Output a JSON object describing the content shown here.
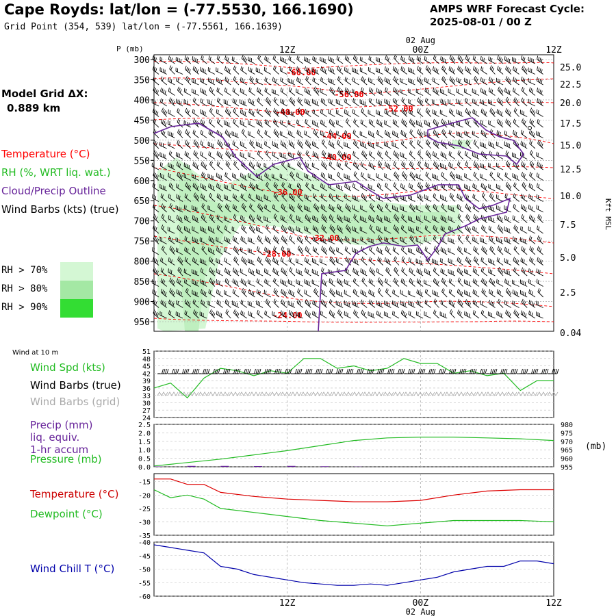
{
  "header": {
    "title": "Cape Royds:  lat/lon = (-77.5530, 166.1690)",
    "subtitle": "Grid Point (354, 539) lat/lon = (-77.5561, 166.1639)",
    "forecast_line1": "AMPS WRF Forecast Cycle:",
    "forecast_line2": "2025-08-01 / 00  Z"
  },
  "model_grid": {
    "label": "Model Grid ΔX:",
    "value": "0.889 km"
  },
  "legend": {
    "temperature": "Temperature (°C)",
    "rh": "RH (%, WRT liq. wat.)",
    "cloud": "Cloud/Precip Outline",
    "wind": "Wind Barbs (kts) (true)",
    "rh70": "RH > 70%",
    "rh80": "RH > 80%",
    "rh90": "RH > 90%"
  },
  "colors": {
    "temperature": "#ff0000",
    "rh": "#22bb22",
    "cloud": "#662299",
    "wind": "#000000",
    "rh70": "#d4f7d4",
    "rh80": "#a4e8a4",
    "rh90": "#33dd33",
    "wind_chill": "#0000aa",
    "grid_barbs": "#aaaaaa"
  },
  "time_axis": {
    "top_date": "02 Aug",
    "bottom_date": "02 Aug",
    "ticks": [
      "12Z",
      "00Z",
      "12Z"
    ]
  },
  "chart_data": [
    {
      "type": "line",
      "panel": "upper-air time-height cross section",
      "y_axis_label": "P (mb)",
      "y_ticks": [
        300,
        350,
        400,
        450,
        500,
        550,
        600,
        650,
        700,
        750,
        800,
        850,
        900,
        950
      ],
      "right_axis_label": "Kft MSL",
      "right_ticks": [
        "25.0",
        "22.5",
        "20.0",
        "17.5",
        "15.0",
        "12.5",
        "10.0",
        "7.5",
        "5.0",
        "2.5",
        "0.04"
      ],
      "isotherm_labels": [
        "-60.00",
        "-56.00",
        "-52.00",
        "-48.00",
        "-44.00",
        "-40.00",
        "-36.00",
        "-32.00",
        "-28.00",
        "-24.00"
      ]
    },
    {
      "type": "line",
      "panel": "wind at 10 m",
      "label": "Wind at 10 m",
      "series": [
        {
          "name": "Wind Spd (kts)",
          "x": [
            0,
            1.5,
            3,
            4.5,
            6,
            7.5,
            9,
            10.5,
            12,
            13.5,
            15,
            16.5,
            18,
            19.5,
            21,
            22.5,
            24,
            25.5,
            27,
            28.5,
            30,
            31.5,
            33,
            34.5,
            36
          ],
          "values": [
            36,
            38,
            32,
            40,
            44,
            43,
            41,
            43,
            42,
            48,
            48,
            44,
            45,
            43,
            44,
            48,
            46,
            46,
            42,
            43,
            41,
            42,
            35,
            39,
            39
          ]
        }
      ],
      "series_labels": [
        "Wind Spd (kts)",
        "Wind Barbs (true)",
        "Wind Barbs (grid)"
      ],
      "y_ticks": [
        24,
        27,
        30,
        33,
        36,
        39,
        42,
        45,
        48,
        51
      ],
      "ylim": [
        24,
        51
      ]
    },
    {
      "type": "line",
      "panel": "precip and pressure",
      "series_labels": [
        "Precip (mm)",
        "liq. equiv.",
        "1-hr accum",
        "Pressure (mb)"
      ],
      "series": [
        {
          "name": "Pressure (mb)",
          "x": [
            0,
            3,
            6,
            9,
            12,
            15,
            18,
            21,
            24,
            27,
            30,
            33,
            36
          ],
          "values": [
            955.5,
            957.5,
            959.5,
            962,
            964.5,
            967.5,
            970.5,
            972,
            972.5,
            972.5,
            972,
            971.5,
            970.5
          ]
        },
        {
          "name": "Precip (mm)",
          "x": [
            0,
            3,
            6,
            9,
            12,
            15,
            18,
            21,
            24,
            27,
            30,
            33,
            36
          ],
          "values": [
            0.02,
            0.05,
            0.05,
            0.04,
            0.05,
            0.03,
            0.01,
            0,
            0,
            0,
            0,
            0,
            0
          ]
        }
      ],
      "y_ticks": [
        "0.0",
        "0.5",
        "1.0",
        "1.5",
        "2.0",
        "2.5"
      ],
      "right_ticks": [
        955,
        960,
        965,
        970,
        975,
        980
      ],
      "right_unit": "(mb)"
    },
    {
      "type": "line",
      "panel": "temperature and dewpoint",
      "series": [
        {
          "name": "Temperature (°C)",
          "x": [
            0,
            1.5,
            3,
            4.5,
            6,
            9,
            12,
            15,
            18,
            21,
            24,
            27,
            30,
            33,
            36
          ],
          "values": [
            -14,
            -14,
            -16,
            -16,
            -19,
            -20.5,
            -21.5,
            -22,
            -22.5,
            -22.5,
            -22,
            -20,
            -18.5,
            -18,
            -18
          ]
        },
        {
          "name": "Dewpoint (°C)",
          "x": [
            0,
            1.5,
            3,
            4.5,
            6,
            9,
            12,
            15,
            18,
            21,
            24,
            27,
            30,
            33,
            36
          ],
          "values": [
            -18,
            -21,
            -20,
            -21.5,
            -25,
            -26.5,
            -28,
            -29.5,
            -30.5,
            -31.5,
            -30.5,
            -29.5,
            -29.5,
            -29.5,
            -30
          ]
        }
      ],
      "y_ticks": [
        -35,
        -30,
        -25,
        -20,
        -15
      ],
      "ylim": [
        -35,
        -12
      ]
    },
    {
      "type": "line",
      "panel": "wind chill",
      "series": [
        {
          "name": "Wind Chill T (°C)",
          "x": [
            0,
            1.5,
            3,
            4.5,
            6,
            7.5,
            9,
            10.5,
            12,
            13.5,
            15,
            16.5,
            18,
            19.5,
            21,
            22.5,
            24,
            25.5,
            27,
            28.5,
            30,
            31.5,
            33,
            34.5,
            36
          ],
          "values": [
            -41,
            -42,
            -43,
            -44,
            -49,
            -50,
            -52,
            -53,
            -54,
            -55,
            -55.5,
            -56,
            -56,
            -55.5,
            -56,
            -55,
            -54,
            -53,
            -51,
            -50,
            -49,
            -49,
            -47,
            -47,
            -48
          ]
        }
      ],
      "y_ticks": [
        -60,
        -55,
        -50,
        -45,
        -40
      ],
      "ylim": [
        -60,
        -40
      ]
    }
  ],
  "panel_labels": {
    "wind10": "Wind at 10 m",
    "wind_spd": "Wind Spd (kts)",
    "wind_barbs_true": "Wind Barbs (true)",
    "wind_barbs_grid": "Wind Barbs (grid)",
    "precip1": "Precip (mm)",
    "precip2": "liq. equiv.",
    "precip3": "1-hr accum",
    "pressure": "Pressure (mb)",
    "mb_unit": "(mb)",
    "temperature": "Temperature (°C)",
    "dewpoint": "Dewpoint (°C)",
    "wind_chill": "Wind Chill T (°C)"
  }
}
